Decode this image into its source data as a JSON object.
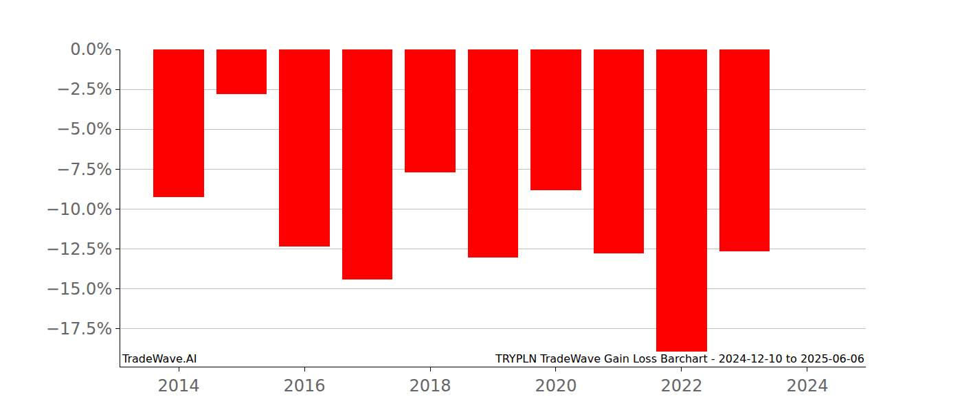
{
  "chart_data": {
    "type": "bar",
    "title": "TRYPLN TradeWave Gain Loss Barchart - 2024-12-10 to 2025-06-06",
    "annotations": [
      "TradeWave.AI"
    ],
    "x": [
      2014,
      2015,
      2016,
      2017,
      2018,
      2019,
      2020,
      2021,
      2022,
      2023
    ],
    "values": [
      -9.25,
      -2.8,
      -12.35,
      -14.45,
      -7.7,
      -13.05,
      -8.85,
      -12.8,
      -18.95,
      -12.65
    ],
    "color": "#ff0000",
    "xlim": [
      2013.07,
      2024.93
    ],
    "xticks": [
      2014,
      2016,
      2018,
      2020,
      2022,
      2024
    ],
    "ylim": [
      -19.9,
      0
    ],
    "yticks": [
      {
        "value": 0,
        "label": "0.0%"
      },
      {
        "value": -2.5,
        "label": "−2.5%"
      },
      {
        "value": -5,
        "label": "−5.0%"
      },
      {
        "value": -7.5,
        "label": "−7.5%"
      },
      {
        "value": -10,
        "label": "−10.0%"
      },
      {
        "value": -12.5,
        "label": "−12.5%"
      },
      {
        "value": -15,
        "label": "−15.0%"
      },
      {
        "value": -17.5,
        "label": "−17.5%"
      }
    ],
    "grid": true
  }
}
